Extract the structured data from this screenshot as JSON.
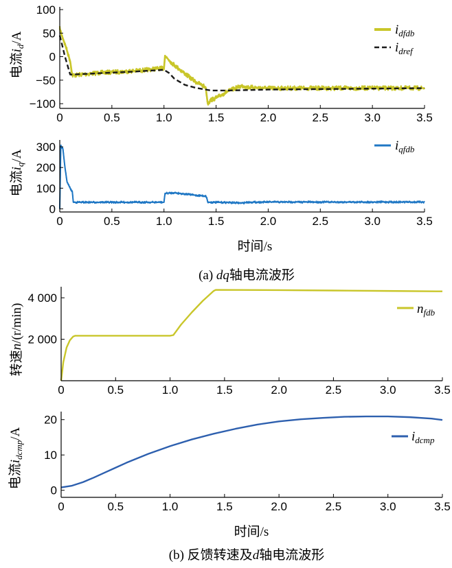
{
  "captions": {
    "a": "(a) dq轴电流波形",
    "b": "(b) 反馈转速及d轴电流波形"
  },
  "chart_data": [
    {
      "type": "line",
      "ylabel": "电流id/A",
      "xlim": [
        0,
        3.5
      ],
      "ylim": [
        -110,
        100
      ],
      "xticks": [
        "0",
        "0.5",
        "1.0",
        "1.5",
        "2.0",
        "2.5",
        "3.0",
        "3.5"
      ],
      "yticks": [
        "100",
        "50",
        "0",
        "−50",
        "−100"
      ],
      "ytick_values": [
        100,
        50,
        0,
        -50,
        -100
      ],
      "legend": "top-right",
      "series": [
        {
          "name": "idfdb",
          "color": "#c9c62a",
          "style": "solid-noisy",
          "x": [
            0,
            0.02,
            0.06,
            0.1,
            0.12,
            0.2,
            0.4,
            0.6,
            0.8,
            0.95,
            1.0,
            1.01,
            1.05,
            1.1,
            1.2,
            1.3,
            1.4,
            1.42,
            1.45,
            1.5,
            1.6,
            1.7,
            1.75,
            1.8,
            2.0,
            2.5,
            3.0,
            3.5
          ],
          "y": [
            60,
            45,
            20,
            -10,
            -40,
            -38,
            -34,
            -32,
            -29,
            -25,
            -25,
            2,
            -8,
            -18,
            -36,
            -53,
            -65,
            -100,
            -92,
            -88,
            -75,
            -66,
            -62,
            -65,
            -67,
            -67,
            -67,
            -67
          ]
        },
        {
          "name": "idref",
          "color": "#1a1a1a",
          "style": "dashed",
          "x": [
            0,
            0.05,
            0.1,
            0.12,
            0.4,
            0.7,
            1.0,
            1.05,
            1.1,
            1.2,
            1.3,
            1.4,
            1.45,
            1.6,
            2.0,
            3.0,
            3.5
          ],
          "y": [
            45,
            0,
            -38,
            -38,
            -35,
            -32,
            -28,
            -35,
            -47,
            -60,
            -66,
            -70,
            -72,
            -72,
            -70,
            -68,
            -67
          ]
        }
      ]
    },
    {
      "type": "line",
      "ylabel": "电流iq/A",
      "xlabel": "时间/s",
      "xlim": [
        0,
        3.5
      ],
      "ylim": [
        -15,
        320
      ],
      "xticks": [
        "0",
        "0.5",
        "1.0",
        "1.5",
        "2.0",
        "2.5",
        "3.0",
        "3.5"
      ],
      "yticks": [
        "300",
        "200",
        "100",
        "0"
      ],
      "ytick_values": [
        300,
        200,
        100,
        0
      ],
      "legend": "top-right",
      "series": [
        {
          "name": "iqfdb",
          "color": "#1f77c4",
          "style": "solid-noisy",
          "x": [
            0,
            0.01,
            0.03,
            0.05,
            0.07,
            0.1,
            0.11,
            0.12,
            0.13,
            0.5,
            0.99,
            1.0,
            1.01,
            1.1,
            1.2,
            1.3,
            1.4,
            1.41,
            1.42,
            1.6,
            1.75,
            1.8,
            2.0,
            3.0,
            3.5
          ],
          "y": [
            0,
            305,
            290,
            200,
            130,
            100,
            90,
            85,
            32,
            32,
            32,
            32,
            75,
            78,
            72,
            66,
            62,
            55,
            32,
            31,
            28,
            32,
            33,
            33,
            33
          ]
        }
      ]
    },
    {
      "type": "line",
      "ylabel": "转速n/(r/min)",
      "xlim": [
        0,
        3.5
      ],
      "ylim": [
        0,
        4400
      ],
      "xticks": [
        "0",
        "0.5",
        "1.0",
        "1.5",
        "2.0",
        "2.5",
        "3.0",
        "3.5"
      ],
      "yticks": [
        "4 000",
        "2 000"
      ],
      "ytick_values": [
        4000,
        2000
      ],
      "legend": "top-right",
      "series": [
        {
          "name": "nfdb",
          "color": "#c9c62a",
          "style": "solid",
          "x": [
            0,
            0.02,
            0.05,
            0.08,
            0.11,
            0.13,
            0.5,
            1.0,
            1.03,
            1.1,
            1.2,
            1.3,
            1.4,
            1.42,
            2.0,
            2.5,
            3.0,
            3.5
          ],
          "y": [
            0,
            900,
            1600,
            1950,
            2130,
            2170,
            2170,
            2170,
            2200,
            2700,
            3300,
            3850,
            4330,
            4380,
            4370,
            4350,
            4330,
            4310
          ]
        }
      ]
    },
    {
      "type": "line",
      "ylabel": "电流idcmp/A",
      "xlabel": "时间/s",
      "xlim": [
        0,
        3.5
      ],
      "ylim": [
        -2,
        21.5
      ],
      "xticks": [
        "0",
        "0.5",
        "1.0",
        "1.5",
        "2.0",
        "2.5",
        "3.0",
        "3.5"
      ],
      "yticks": [
        "20",
        "10",
        "0"
      ],
      "ytick_values": [
        20,
        10,
        0
      ],
      "legend": "top-right",
      "series": [
        {
          "name": "idcmp",
          "color": "#2d5fae",
          "style": "solid",
          "x": [
            0,
            0.1,
            0.2,
            0.3,
            0.4,
            0.5,
            0.6,
            0.8,
            1.0,
            1.2,
            1.4,
            1.6,
            1.8,
            2.0,
            2.2,
            2.4,
            2.6,
            2.8,
            3.0,
            3.2,
            3.4,
            3.5
          ],
          "y": [
            0.8,
            1.3,
            2.3,
            3.6,
            5.0,
            6.4,
            7.8,
            10.3,
            12.5,
            14.4,
            16.0,
            17.4,
            18.6,
            19.5,
            20.1,
            20.5,
            20.8,
            20.9,
            20.9,
            20.7,
            20.3,
            19.9
          ]
        }
      ]
    }
  ]
}
